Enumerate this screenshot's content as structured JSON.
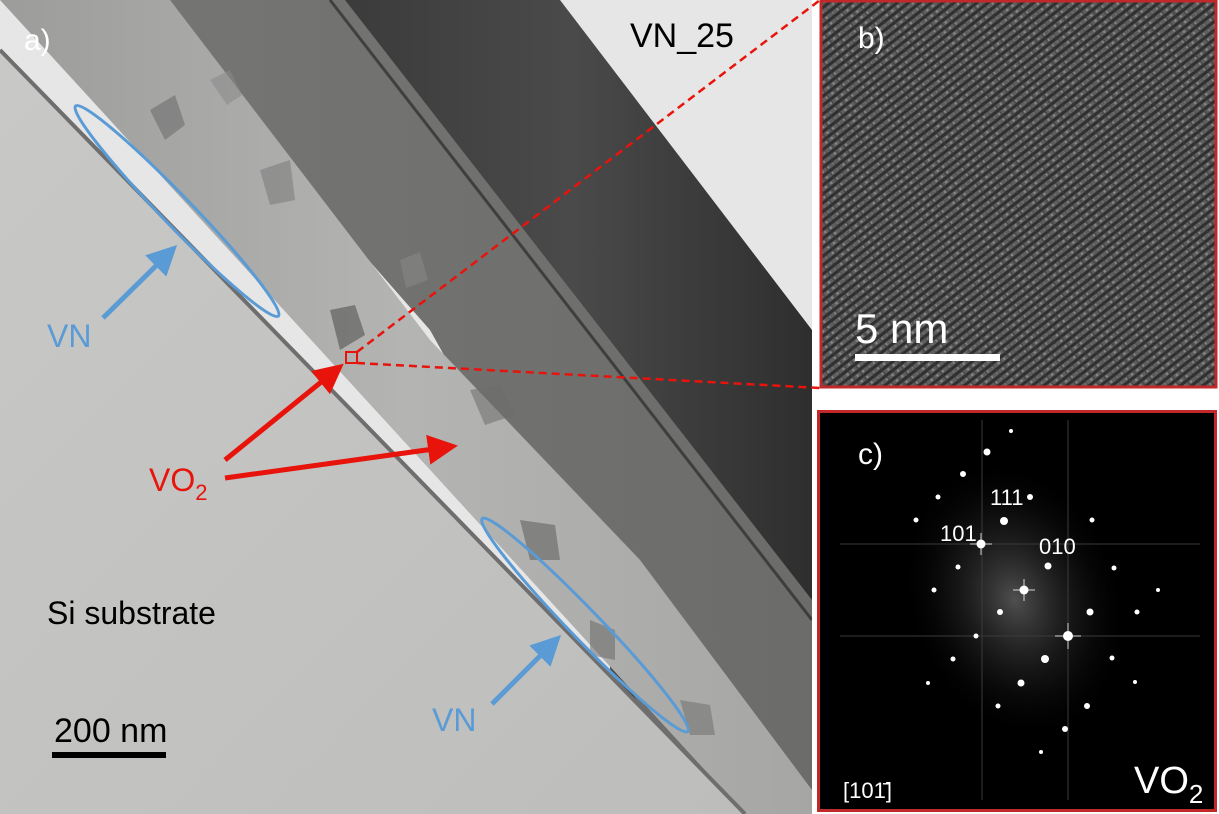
{
  "panel_a": {
    "label": "a)",
    "sample": "VN_25",
    "vn_label": "VN",
    "vo2_label": "VO",
    "vo2_subscript": "2",
    "substrate": "Si substrate",
    "scale_bar": "200 nm"
  },
  "panel_b": {
    "label": "b)",
    "scale_bar": "5 nm"
  },
  "panel_c": {
    "label": "c)",
    "indices": {
      "i111": "111",
      "i101": "101",
      "i010": "010"
    },
    "zone_axis": "[101̄]",
    "phase": "VO",
    "phase_subscript": "2"
  },
  "colors": {
    "accent_red": "#e8140c",
    "accent_blue": "#5b9bd5",
    "panel_border": "#c0282a"
  }
}
